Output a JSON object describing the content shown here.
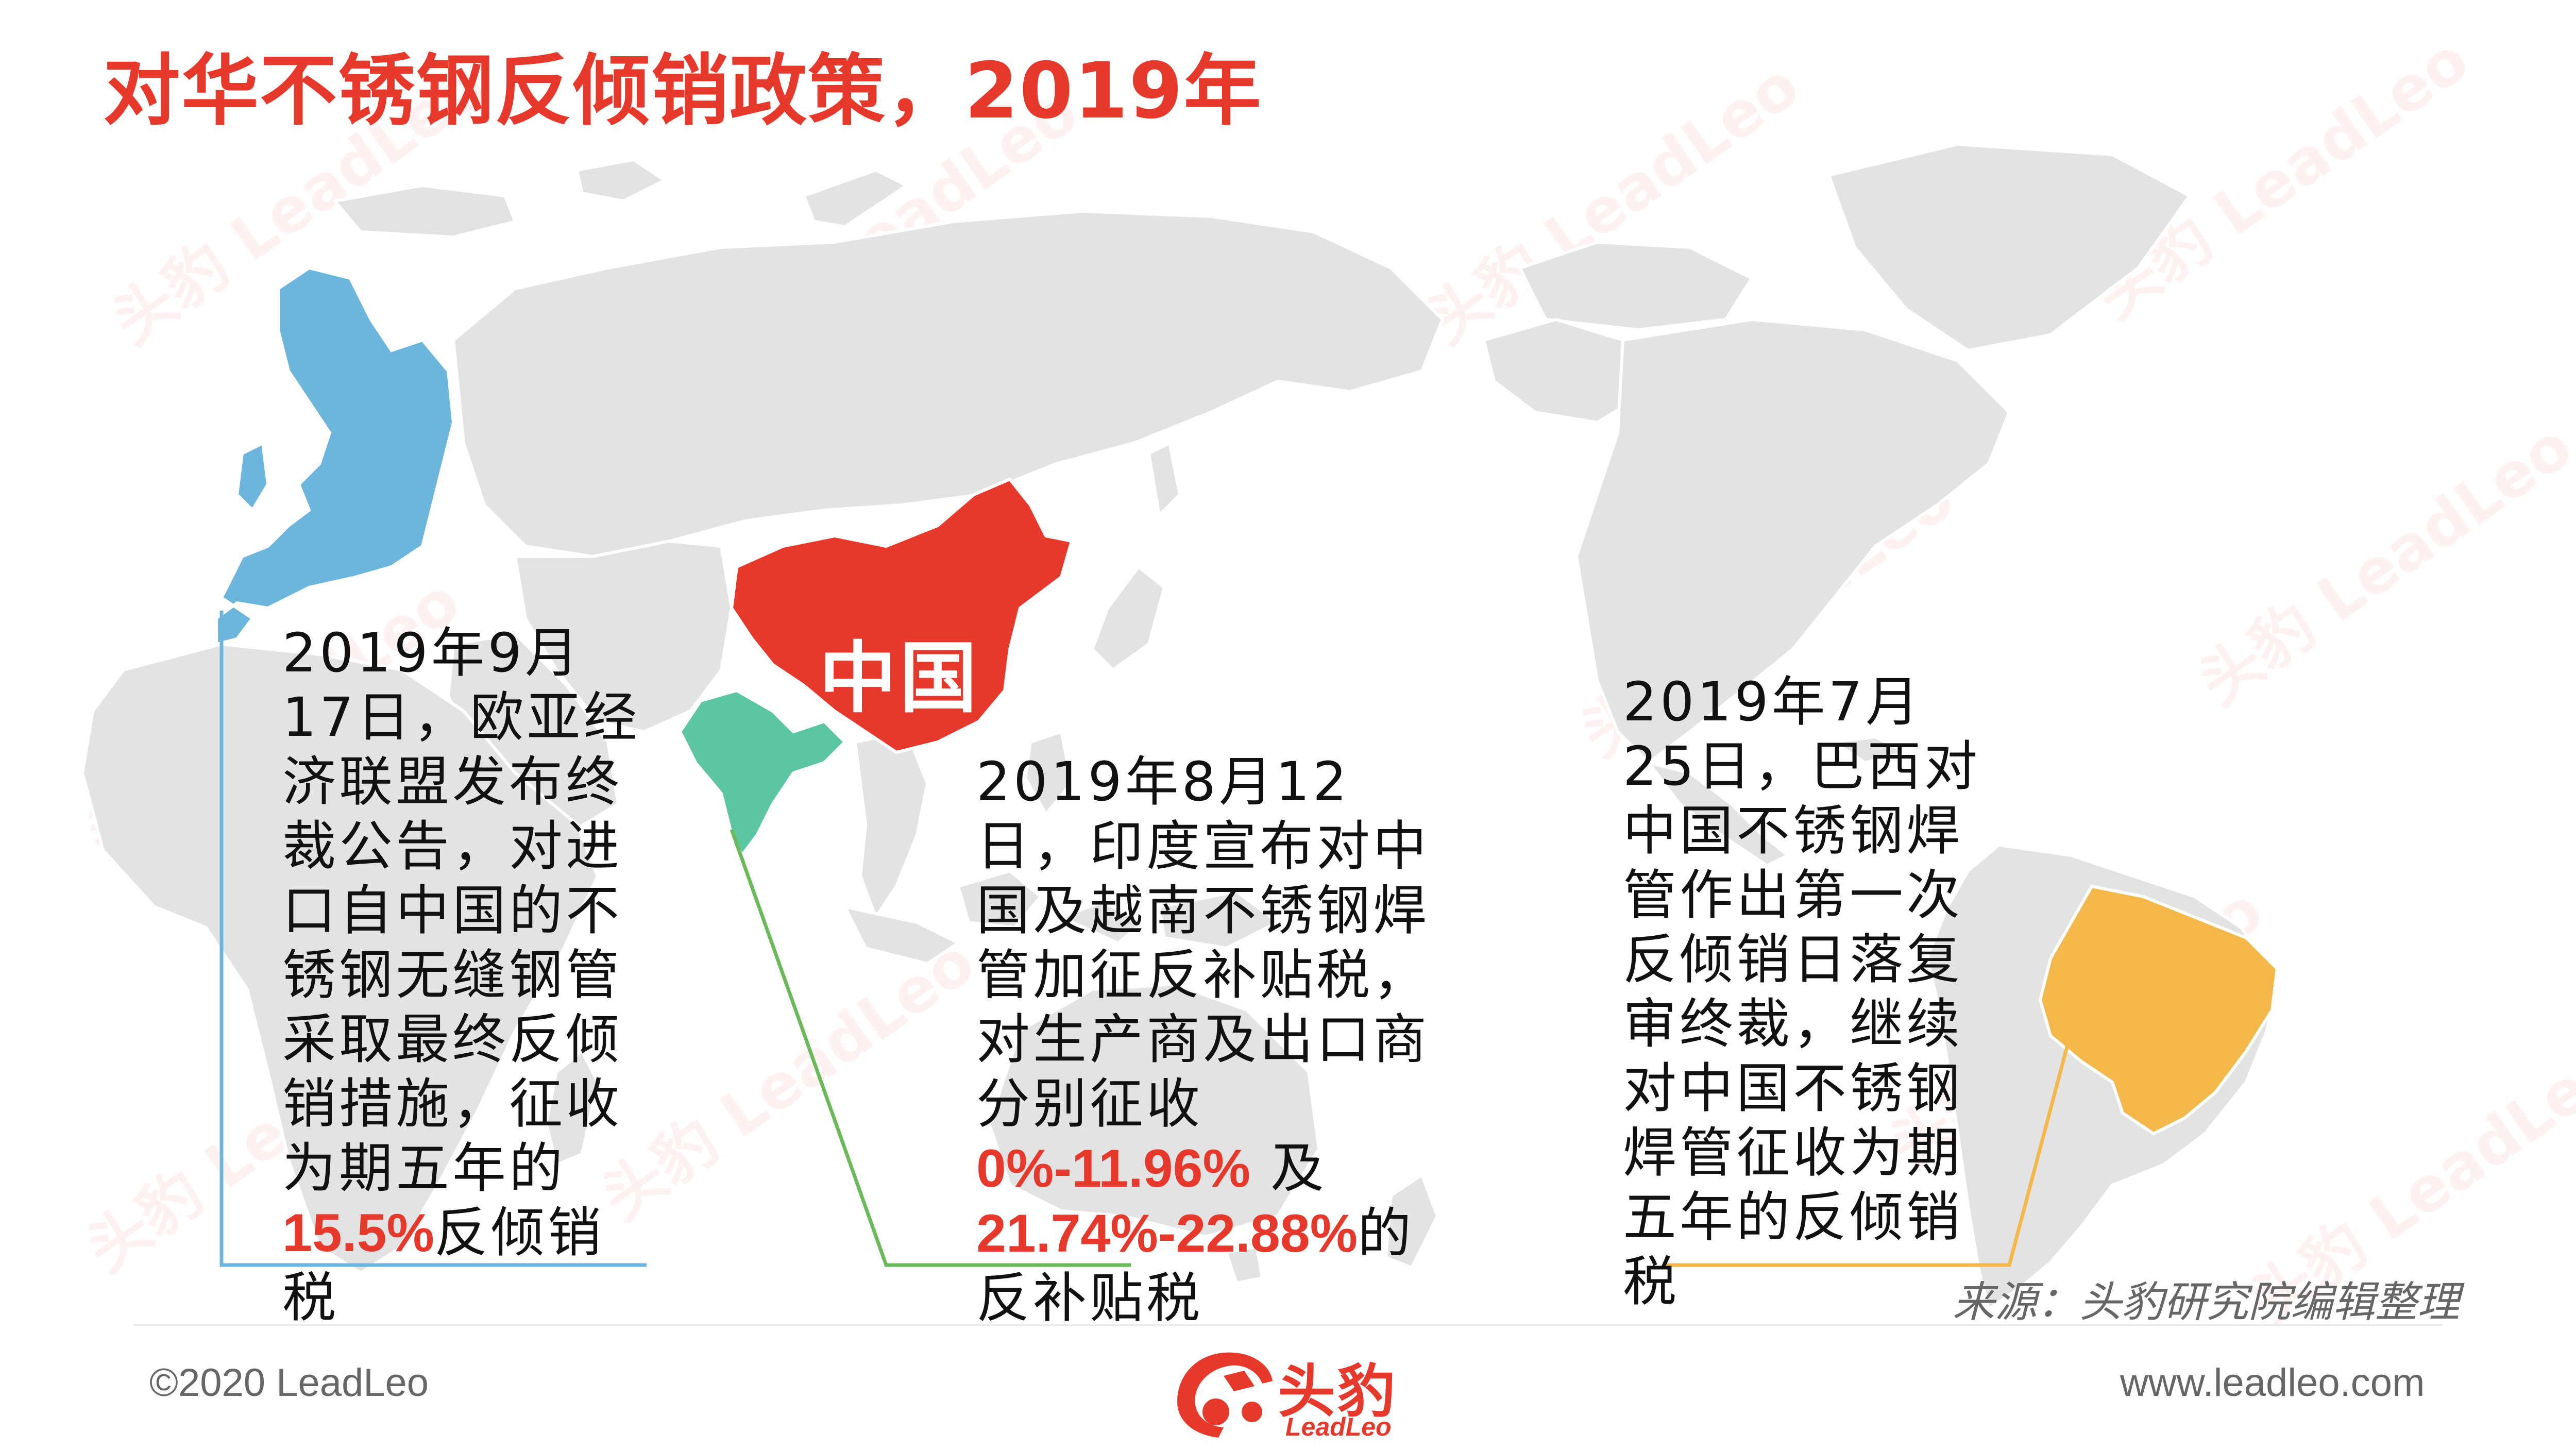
{
  "title": "对华不锈钢反倾销政策，2019年",
  "map": {
    "china_label": "中国",
    "colors": {
      "land": "#e3e3e3",
      "china": "#e6392b",
      "europe": "#6cb5dc",
      "india": "#5cc5a2",
      "brazil": "#f4b84a"
    }
  },
  "callouts": {
    "eu": {
      "line_color": "#6cb5dc",
      "text_before": "2019年9月17日，欧亚经济联盟发布终裁公告，对进口自中国的不锈钢无缝钢管采取最终反倾销措施，征收为期五年的",
      "highlight": "15.5%",
      "text_after": "反倾销税"
    },
    "india": {
      "line_color": "#6aba5a",
      "text_before": "2019年8月12日，印度宣布对中国及越南不锈钢焊管加征反补贴税，对生产商及出口商分别征收",
      "highlight1": "0%-11.96%",
      "middle": "及",
      "highlight2": "21.74%-22.88%",
      "text_after": "的反补贴税"
    },
    "brazil": {
      "line_color": "#f4b84a",
      "text": "2019年7月25日，巴西对中国不锈钢焊管作出第一次反倾销日落复审终裁，继续对中国不锈钢焊管征收为期五年的反倾销税"
    }
  },
  "source": "来源：头豹研究院编辑整理",
  "footer": {
    "copyright": "©2020 LeadLeo",
    "website": "www.leadleo.com",
    "logo_text": "头豹",
    "logo_sub": "LeadLeo"
  },
  "watermark": {
    "text": "头豹 LeadLeo"
  }
}
